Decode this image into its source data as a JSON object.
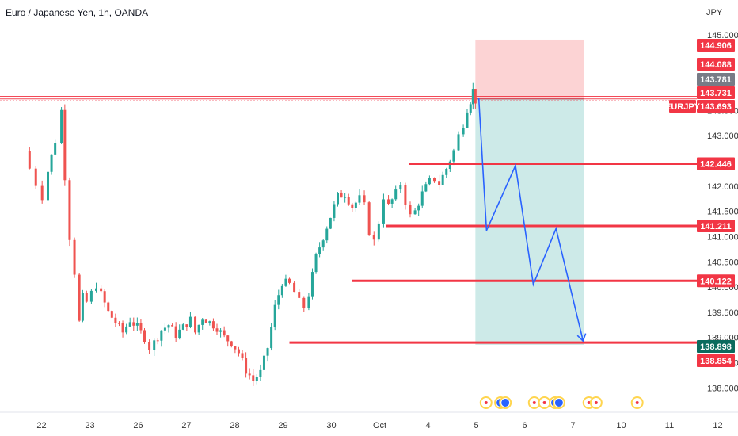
{
  "chart_data": {
    "type": "candlestick",
    "title": "Euro / Japanese Yen, 1h, OANDA",
    "currency": "JPY",
    "symbol": "EURJPY",
    "colors": {
      "up": "#26a69a",
      "down": "#ef5350",
      "level": "#f23645",
      "arrow": "#2962ff",
      "profit_zone": "#b2dfdb",
      "loss_zone": "#fbc4c6",
      "background": "#ffffff",
      "grid": "#f0f3fa",
      "axis_text": "#333333",
      "tag_gray": "#787b86",
      "event_yellow": "#ffd54f"
    },
    "y_range": [
      137.8,
      145.0
    ],
    "x_range": [
      21.5,
      13.0
    ],
    "x_axis": {
      "ticks": [
        {
          "label": "22",
          "t": 22
        },
        {
          "label": "23",
          "t": 23
        },
        {
          "label": "26",
          "t": 24
        },
        {
          "label": "27",
          "t": 25
        },
        {
          "label": "28",
          "t": 26
        },
        {
          "label": "29",
          "t": 27
        },
        {
          "label": "30",
          "t": 28
        },
        {
          "label": "Oct",
          "t": 29
        },
        {
          "label": "4",
          "t": 30
        },
        {
          "label": "5",
          "t": 31
        },
        {
          "label": "6",
          "t": 32
        },
        {
          "label": "7",
          "t": 33
        },
        {
          "label": "10",
          "t": 34
        },
        {
          "label": "11",
          "t": 35
        },
        {
          "label": "12",
          "t": 36
        }
      ]
    },
    "y_axis": {
      "ticks": [
        "145.000",
        "143.500",
        "143.000",
        "142.000",
        "141.500",
        "141.000",
        "140.500",
        "140.000",
        "139.500",
        "139.000",
        "138.500",
        "138.000"
      ]
    },
    "price_tags": [
      {
        "value": "144.906",
        "style": "red"
      },
      {
        "value": "144.088",
        "style": "red"
      },
      {
        "value": "143.781",
        "style": "gray"
      },
      {
        "value": "143.731",
        "style": "red"
      },
      {
        "value": "143.693",
        "style": "red",
        "symbol_label": "EURJPY"
      },
      {
        "value": "142.446",
        "style": "red"
      },
      {
        "value": "141.211",
        "style": "red"
      },
      {
        "value": "140.122",
        "style": "red"
      },
      {
        "value": "138.898",
        "style": "dark"
      },
      {
        "value": "138.854",
        "style": "red"
      }
    ],
    "levels": [
      {
        "price": 142.446,
        "t_start": 29.48
      },
      {
        "price": 141.211,
        "t_start": 29.0
      },
      {
        "price": 140.122,
        "t_start": 28.3
      },
      {
        "price": 138.898,
        "t_start": 27.0
      }
    ],
    "reference_lines": [
      {
        "price": 143.781
      },
      {
        "price": 143.731
      },
      {
        "price": 143.693
      }
    ],
    "position": {
      "t_start": 30.85,
      "t_end": 33.1,
      "entry": 143.731,
      "stop": 144.906,
      "target": 138.854
    },
    "projection": [
      {
        "t": 30.92,
        "p": 143.75
      },
      {
        "t": 31.08,
        "p": 141.12
      },
      {
        "t": 31.68,
        "p": 142.41
      },
      {
        "t": 32.05,
        "p": 140.05
      },
      {
        "t": 32.52,
        "p": 141.16
      },
      {
        "t": 33.08,
        "p": 138.93
      }
    ],
    "events": [
      {
        "t": 31.07,
        "type": "red"
      },
      {
        "t": 31.37,
        "type": "blue"
      },
      {
        "t": 31.47,
        "type": "blue"
      },
      {
        "t": 32.07,
        "type": "red"
      },
      {
        "t": 32.28,
        "type": "red"
      },
      {
        "t": 32.5,
        "type": "blue"
      },
      {
        "t": 32.58,
        "type": "blue"
      },
      {
        "t": 33.2,
        "type": "red"
      },
      {
        "t": 33.35,
        "type": "red"
      },
      {
        "t": 34.2,
        "type": "red"
      }
    ],
    "price_path": [
      [
        21.5,
        142.7
      ],
      [
        21.62,
        142.35
      ],
      [
        21.75,
        142.05
      ],
      [
        21.88,
        141.8
      ],
      [
        22.0,
        142.3
      ],
      [
        22.15,
        142.9
      ],
      [
        22.28,
        143.5
      ],
      [
        22.35,
        142.2
      ],
      [
        22.45,
        141.0
      ],
      [
        22.55,
        140.3
      ],
      [
        22.65,
        139.3
      ],
      [
        22.72,
        139.8
      ],
      [
        22.8,
        139.7
      ],
      [
        23.0,
        140.05
      ],
      [
        23.1,
        139.85
      ],
      [
        23.25,
        139.5
      ],
      [
        23.4,
        139.3
      ],
      [
        23.55,
        139.1
      ],
      [
        23.7,
        139.35
      ],
      [
        23.85,
        139.2
      ],
      [
        24.0,
        139.0
      ],
      [
        24.1,
        138.8
      ],
      [
        24.2,
        138.9
      ],
      [
        24.35,
        139.15
      ],
      [
        24.5,
        139.25
      ],
      [
        24.65,
        139.05
      ],
      [
        24.8,
        139.2
      ],
      [
        24.95,
        139.35
      ],
      [
        25.05,
        139.1
      ],
      [
        25.2,
        139.4
      ],
      [
        25.35,
        139.3
      ],
      [
        25.5,
        139.2
      ],
      [
        25.65,
        139.0
      ],
      [
        25.8,
        138.9
      ],
      [
        25.95,
        138.7
      ],
      [
        26.1,
        138.35
      ],
      [
        26.25,
        138.15
      ],
      [
        26.4,
        138.3
      ],
      [
        26.55,
        138.8
      ],
      [
        26.7,
        139.6
      ],
      [
        26.85,
        140.1
      ],
      [
        27.0,
        140.05
      ],
      [
        27.1,
        139.9
      ],
      [
        27.2,
        139.7
      ],
      [
        27.3,
        139.6
      ],
      [
        27.4,
        139.85
      ],
      [
        27.55,
        140.6
      ],
      [
        27.7,
        141.0
      ],
      [
        27.85,
        141.4
      ],
      [
        28.0,
        141.8
      ],
      [
        28.15,
        141.85
      ],
      [
        28.3,
        141.6
      ],
      [
        28.45,
        141.75
      ],
      [
        28.55,
        141.6
      ],
      [
        28.65,
        141.1
      ],
      [
        28.75,
        140.9
      ],
      [
        28.85,
        141.3
      ],
      [
        28.95,
        141.8
      ],
      [
        29.05,
        141.6
      ],
      [
        29.2,
        141.85
      ],
      [
        29.3,
        142.05
      ],
      [
        29.4,
        141.7
      ],
      [
        29.5,
        141.4
      ],
      [
        29.6,
        141.5
      ],
      [
        29.75,
        141.85
      ],
      [
        29.9,
        142.1
      ],
      [
        30.0,
        142.15
      ],
      [
        30.1,
        142.05
      ],
      [
        30.25,
        142.35
      ],
      [
        30.4,
        142.7
      ],
      [
        30.5,
        143.0
      ],
      [
        30.6,
        143.25
      ],
      [
        30.68,
        143.55
      ],
      [
        30.75,
        143.7
      ],
      [
        30.8,
        143.9
      ],
      [
        30.85,
        143.7
      ]
    ]
  }
}
